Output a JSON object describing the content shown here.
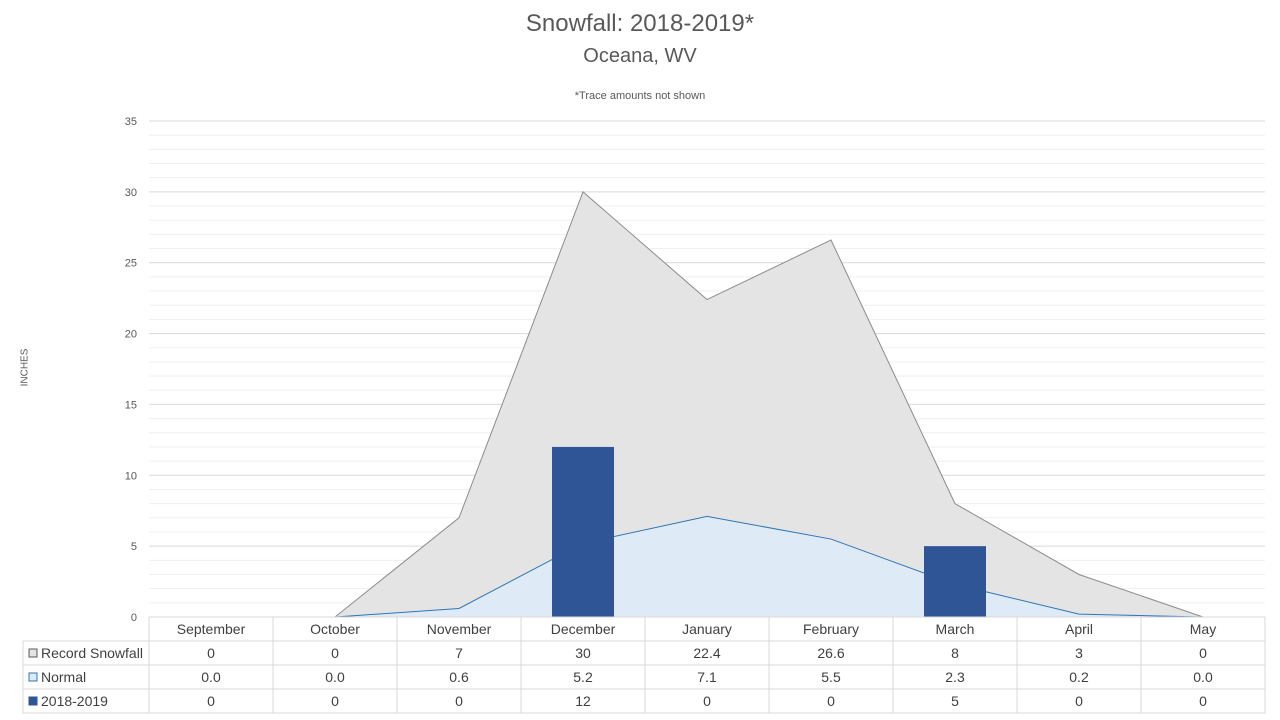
{
  "chart_data": {
    "type": "bar",
    "title": "Snowfall: 2018-2019*",
    "subtitle": "Oceana, WV",
    "annotation": "*Trace amounts not shown",
    "ylabel": "INCHES",
    "ylim": [
      0,
      35
    ],
    "yticks": [
      "0",
      "5",
      "10",
      "15",
      "20",
      "25",
      "30",
      "35"
    ],
    "grid": true,
    "categories": [
      "September",
      "October",
      "November",
      "December",
      "January",
      "February",
      "March",
      "April",
      "May"
    ],
    "series": [
      {
        "name": "Record Snowfall",
        "type": "area",
        "values": [
          0,
          0,
          7,
          30,
          22.4,
          26.6,
          8,
          3,
          0
        ],
        "table": [
          "0",
          "0",
          "7",
          "30",
          "22.4",
          "26.6",
          "8",
          "3",
          "0"
        ],
        "color": "#e4e4e4",
        "stroke": "#8c8c8c"
      },
      {
        "name": "Normal",
        "type": "area",
        "values": [
          0.0,
          0.0,
          0.6,
          5.2,
          7.1,
          5.5,
          2.3,
          0.2,
          0.0
        ],
        "table": [
          "0.0",
          "0.0",
          "0.6",
          "5.2",
          "7.1",
          "5.5",
          "2.3",
          "0.2",
          "0.0"
        ],
        "color": "#deebf7",
        "stroke": "#2e75b6"
      },
      {
        "name": "2018-2019",
        "type": "bar",
        "values": [
          0,
          0,
          0,
          12,
          0,
          0,
          5,
          0,
          0
        ],
        "table": [
          "0",
          "0",
          "0",
          "12",
          "0",
          "0",
          "5",
          "0",
          "0"
        ],
        "color": "#2f5597"
      }
    ]
  }
}
